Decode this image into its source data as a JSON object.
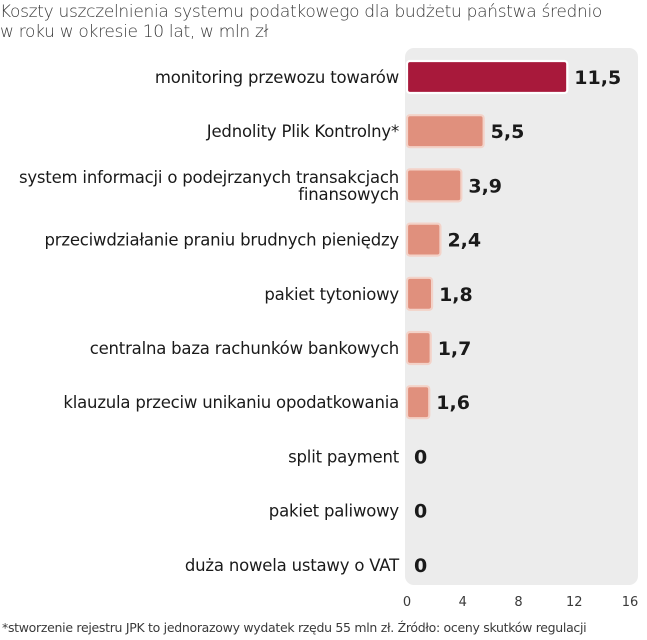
{
  "title": {
    "line1": "Koszty uszczelnienia systemu podatkowego dla budżetu państwa średnio",
    "line2": "w roku w okresie 10 lat, w mln zł"
  },
  "footnote": "*stworzenie rejestru JPK to jednorazowy wydatek rzędu 55 mln zł. Źródło: oceny skutków regulacji",
  "colors": {
    "highlight": "#a8193b",
    "bar": "#e0907d",
    "bar_stroke": "#f3d2c8",
    "panel": "#ececec",
    "text": "#1a1a1a"
  },
  "chart_data": {
    "type": "bar",
    "orientation": "horizontal",
    "categories": [
      [
        "monitoring przewozu towarów"
      ],
      [
        "Jednolity Plik Kontrolny*"
      ],
      [
        "system informacji o podejrzanych transakcjach",
        "finansowych"
      ],
      [
        "przeciwdziałanie praniu brudnych pieniędzy"
      ],
      [
        "pakiet tytoniowy"
      ],
      [
        "centralna baza rachunków bankowych"
      ],
      [
        "klauzula przeciw unikaniu opodatkowania"
      ],
      [
        "split payment"
      ],
      [
        "pakiet paliwowy"
      ],
      [
        "duża nowela ustawy o VAT"
      ]
    ],
    "values": [
      11.5,
      5.5,
      3.9,
      2.4,
      1.8,
      1.7,
      1.6,
      0,
      0,
      0
    ],
    "value_labels": [
      "11,5",
      "5,5",
      "3,9",
      "2,4",
      "1,8",
      "1,7",
      "1,6",
      "0",
      "0",
      "0"
    ],
    "xlim": [
      0,
      16
    ],
    "xticks": [
      0,
      4,
      8,
      12,
      16
    ],
    "highlight_index": 0,
    "grid": false
  }
}
